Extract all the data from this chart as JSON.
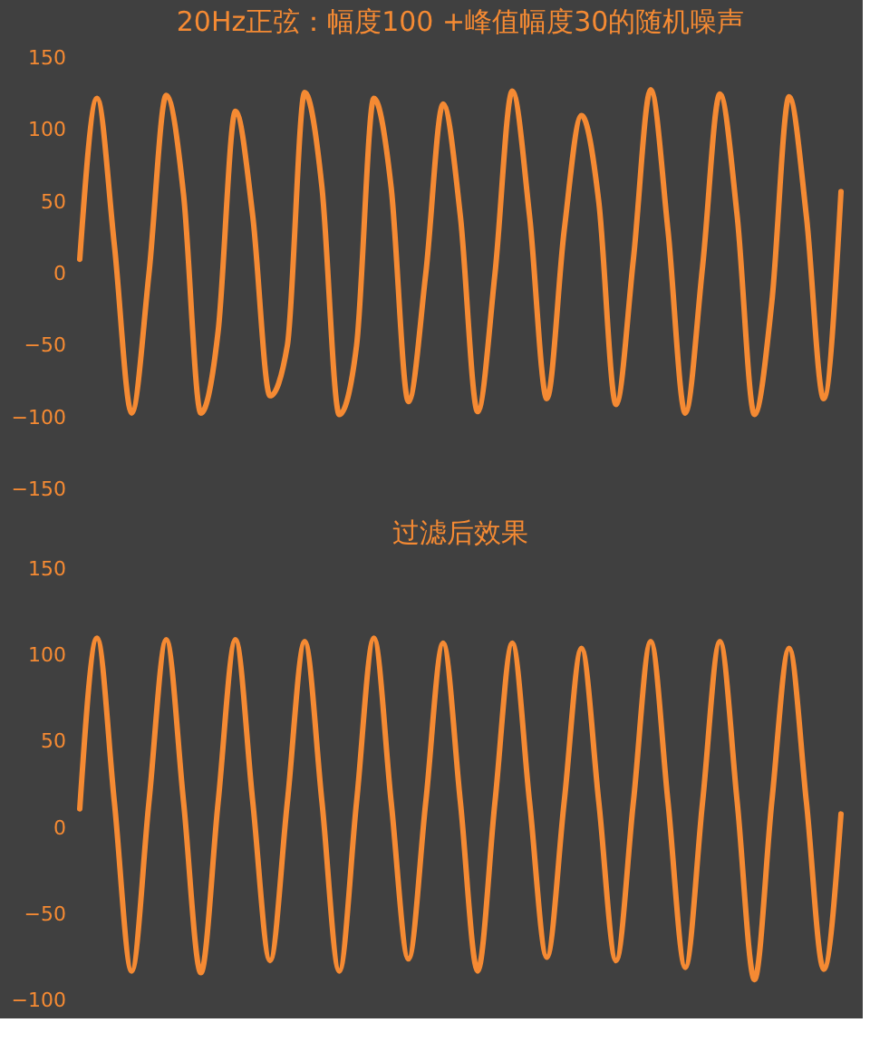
{
  "chart_data": [
    {
      "type": "line",
      "title": "20Hz正弦：幅度100 +峰值幅度30的随机噪声",
      "categories": [
        null,
        null,
        null,
        null,
        null,
        null,
        null,
        null,
        null,
        null,
        null,
        null,
        null,
        null,
        null,
        null,
        null,
        null,
        null,
        null,
        null,
        null,
        null,
        null,
        null,
        null,
        null,
        null,
        null,
        null,
        null,
        null,
        null,
        null,
        null,
        null,
        null,
        null,
        null,
        null,
        null,
        null,
        null,
        null,
        null
      ],
      "series": [
        {
          "color": "#f58a33",
          "values": [
            10,
            122,
            20,
            -97,
            0,
            124,
            55,
            -97,
            -40,
            113,
            40,
            -85,
            -50,
            126,
            60,
            -98,
            -50,
            122,
            60,
            -89,
            0,
            118,
            40,
            -96,
            0,
            127,
            40,
            -87,
            30,
            110,
            50,
            -91,
            10,
            128,
            30,
            -97,
            5,
            125,
            40,
            -98,
            -20,
            123,
            40,
            -87,
            57
          ]
        }
      ],
      "ylim": [
        -150,
        150
      ],
      "yticks": [
        -150,
        -100,
        -50,
        0,
        50,
        100,
        150
      ],
      "grid": false,
      "legend": false,
      "tick_labels": "y",
      "line_style": "solid",
      "marker": "none"
    },
    {
      "type": "line",
      "title": "过滤后效果",
      "categories": [
        null,
        null,
        null,
        null,
        null,
        null,
        null,
        null,
        null,
        null,
        null,
        null,
        null,
        null,
        null,
        null,
        null,
        null,
        null,
        null,
        null,
        null,
        null,
        null,
        null,
        null,
        null,
        null,
        null,
        null,
        null,
        null,
        null,
        null,
        null,
        null,
        null,
        null,
        null,
        null,
        null,
        null,
        null,
        null,
        null
      ],
      "series": [
        {
          "color": "#f58a33",
          "values": [
            11,
            110,
            15,
            -83,
            15,
            109,
            15,
            -84,
            15,
            109,
            15,
            -77,
            15,
            108,
            15,
            -83,
            15,
            110,
            15,
            -76,
            15,
            107,
            15,
            -83,
            15,
            107,
            15,
            -75,
            15,
            104,
            15,
            -77,
            15,
            108,
            15,
            -81,
            15,
            108,
            15,
            -88,
            15,
            104,
            15,
            -82,
            8
          ]
        }
      ],
      "ylim": [
        -100,
        150
      ],
      "yticks": [
        -100,
        -50,
        0,
        50,
        100,
        150
      ],
      "grid": false,
      "legend": false,
      "tick_labels": "y",
      "line_style": "solid",
      "marker": "none"
    }
  ]
}
